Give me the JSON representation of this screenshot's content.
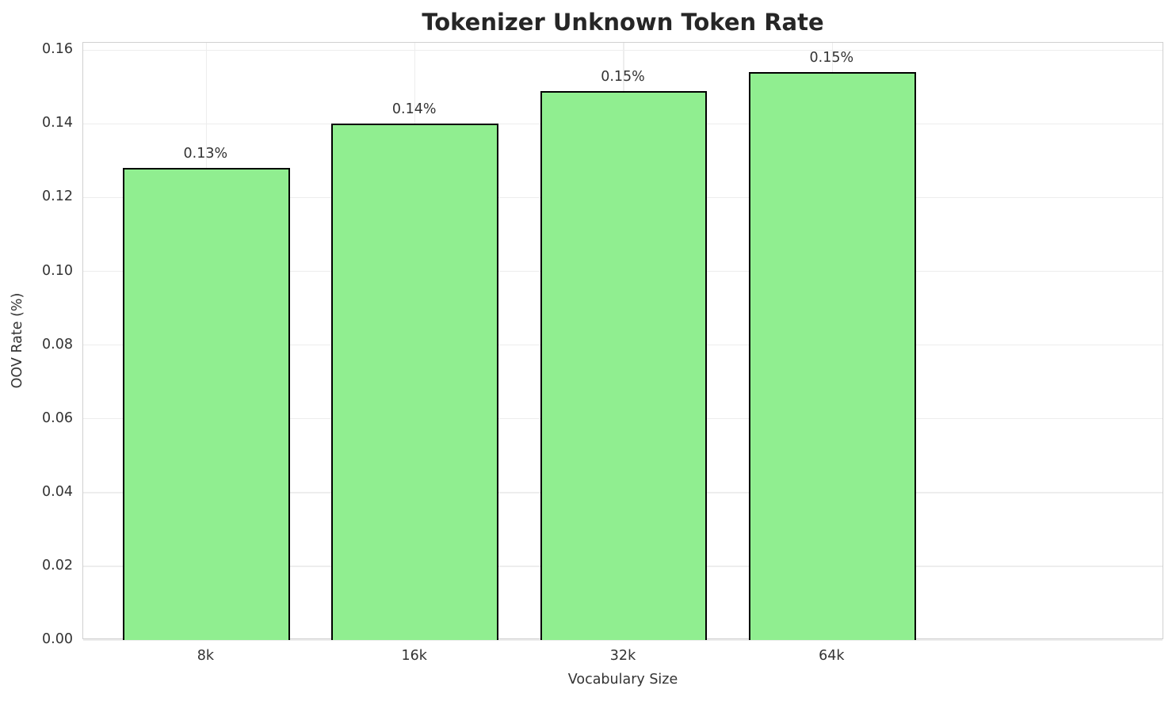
{
  "chart_data": {
    "type": "bar",
    "title": "Tokenizer Unknown Token Rate",
    "xlabel": "Vocabulary Size",
    "ylabel": "OOV Rate (%)",
    "categories": [
      "8k",
      "16k",
      "32k",
      "64k"
    ],
    "values": [
      0.128,
      0.14,
      0.149,
      0.154
    ],
    "bar_labels": [
      "0.13%",
      "0.14%",
      "0.15%",
      "0.15%"
    ],
    "yticks": [
      0,
      0.02,
      0.04,
      0.06,
      0.08,
      0.1,
      0.12,
      0.14,
      0.16
    ],
    "ytick_labels": [
      "0.00",
      "0.02",
      "0.04",
      "0.06",
      "0.08",
      "0.10",
      "0.12",
      "0.14",
      "0.16"
    ],
    "ylim": [
      0,
      0.162
    ],
    "xlim_pad": 0.59,
    "bar_width": 0.8,
    "grid": true,
    "legend_position": "none",
    "colors": {
      "bar_fill": "#90EE90",
      "bar_edge": "#000000",
      "grid": "#ededed",
      "spine": "#d0d0d0",
      "text": "#333333",
      "title": "#262626",
      "background": "#ffffff"
    }
  }
}
